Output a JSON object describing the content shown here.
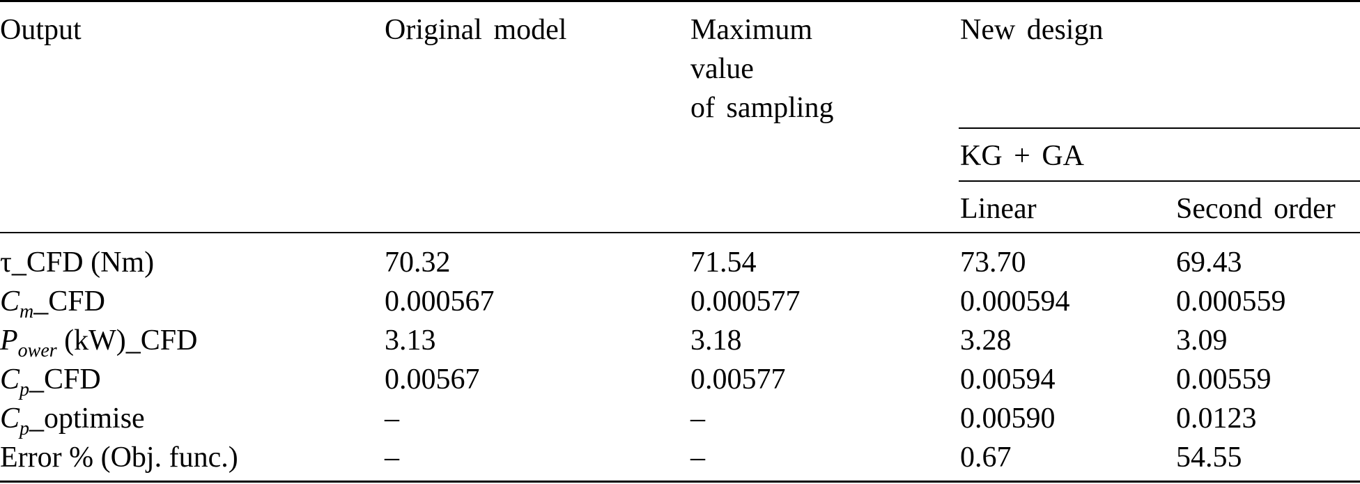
{
  "table": {
    "headers": {
      "output": "Output",
      "original_model": "Original model",
      "maximum_value_line1": "Maximum",
      "maximum_value_line2": "value",
      "maximum_value_line3": "of sampling",
      "new_design": "New design",
      "kg_ga": "KG + GA",
      "linear": "Linear",
      "second_order": "Second order"
    },
    "rows": [
      {
        "label_main": "τ_CFD (Nm)",
        "original": "70.32",
        "maximum": "71.54",
        "linear": "73.70",
        "second_order": "69.43"
      },
      {
        "label_sym": "C",
        "label_sub": "m",
        "label_rest": "_CFD",
        "original": "0.000567",
        "maximum": "0.000577",
        "linear": "0.000594",
        "second_order": "0.000559"
      },
      {
        "label_sym": "P",
        "label_sub": "ower",
        "label_rest": " (kW)_CFD",
        "original": "3.13",
        "maximum": "3.18",
        "linear": "3.28",
        "second_order": "3.09"
      },
      {
        "label_sym": "C",
        "label_sub": "p",
        "label_rest": "_CFD",
        "original": "0.00567",
        "maximum": "0.00577",
        "linear": "0.00594",
        "second_order": "0.00559"
      },
      {
        "label_sym": "C",
        "label_sub": "p",
        "label_rest": "_optimise",
        "original": "–",
        "maximum": "–",
        "linear": "0.00590",
        "second_order": "0.0123"
      },
      {
        "label_main": "Error % (Obj. func.)",
        "original": "–",
        "maximum": "–",
        "linear": "0.67",
        "second_order": "54.55"
      }
    ]
  }
}
